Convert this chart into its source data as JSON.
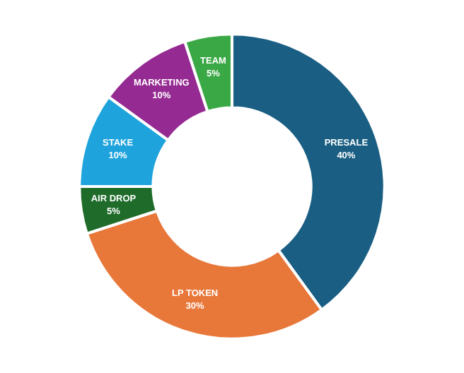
{
  "chart_data": {
    "type": "donut",
    "categories": [
      "PRESALE",
      "LP TOKEN",
      "AIR DROP",
      "STAKE",
      "MARKETING",
      "TEAM"
    ],
    "values": [
      40,
      30,
      5,
      10,
      10,
      5
    ],
    "value_labels": [
      "40%",
      "30%",
      "5%",
      "10%",
      "10%",
      "5%"
    ],
    "colors": [
      "#1a5f83",
      "#e8773a",
      "#1e6b2a",
      "#1fa3dc",
      "#952b92",
      "#3aa845"
    ],
    "legend": false
  }
}
